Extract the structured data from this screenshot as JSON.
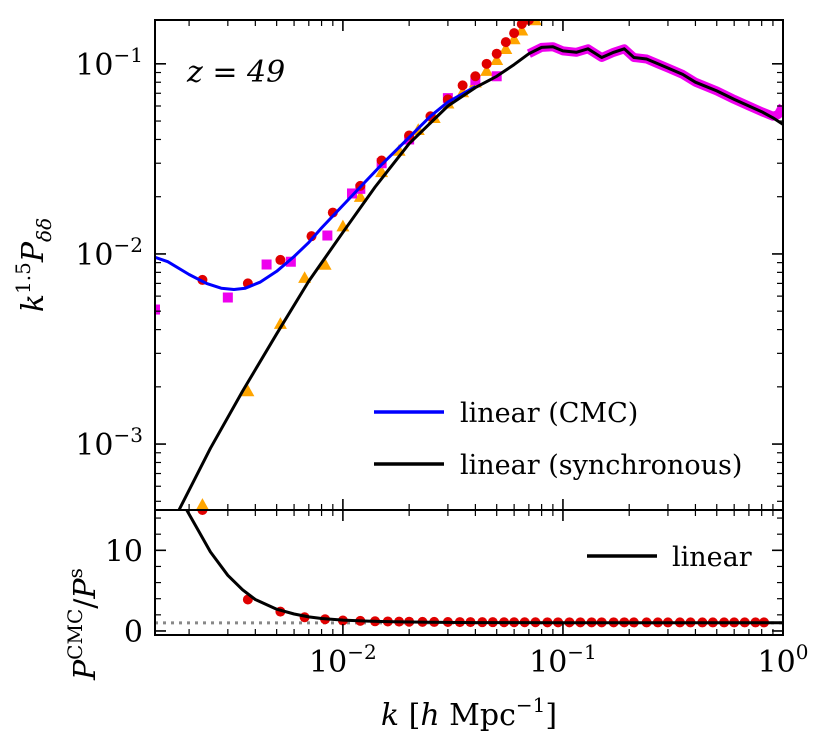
{
  "chart_data": [
    {
      "panel": "top",
      "type": "line",
      "annotation": "z = 49",
      "ylabel": "k^{1.5} P_{δδ}",
      "xlabel": "",
      "xscale": "log",
      "yscale": "log",
      "xlim": [
        0.0014,
        1.0
      ],
      "ylim": [
        0.00045,
        0.17
      ],
      "yticks": [
        {
          "value": 0.1,
          "base": "10",
          "exp": "−1"
        },
        {
          "value": 0.01,
          "base": "10",
          "exp": "−2"
        },
        {
          "value": 0.001,
          "base": "10",
          "exp": "−3"
        }
      ],
      "legend_position": "lower-right",
      "series": [
        {
          "name": "linear (CMC)",
          "style": "line",
          "color": "#0000ff",
          "x": [
            0.0014,
            0.0016,
            0.002,
            0.0024,
            0.0028,
            0.0032,
            0.0036,
            0.0042,
            0.005,
            0.006,
            0.007,
            0.008,
            0.01,
            0.012,
            0.015,
            0.02,
            0.025,
            0.03,
            0.04
          ],
          "y": [
            0.0096,
            0.0091,
            0.0078,
            0.007,
            0.0066,
            0.0065,
            0.0066,
            0.0071,
            0.0081,
            0.0097,
            0.0115,
            0.0137,
            0.018,
            0.0225,
            0.0295,
            0.041,
            0.053,
            0.063,
            0.076
          ]
        },
        {
          "name": "linear (synchronous)",
          "style": "line",
          "color": "#000000",
          "x": [
            0.0018,
            0.0025,
            0.0035,
            0.005,
            0.007,
            0.01,
            0.014,
            0.02,
            0.03,
            0.04,
            0.05,
            0.06,
            0.07,
            0.08,
            0.09,
            0.1,
            0.115,
            0.13,
            0.15,
            0.17,
            0.19,
            0.21,
            0.24,
            0.27,
            0.3,
            0.35,
            0.4,
            0.5,
            0.6,
            0.7,
            0.8,
            0.9,
            1.0
          ],
          "y": [
            0.00045,
            0.00095,
            0.0019,
            0.0038,
            0.0072,
            0.013,
            0.0225,
            0.038,
            0.06,
            0.075,
            0.086,
            0.099,
            0.113,
            0.122,
            0.123,
            0.117,
            0.115,
            0.12,
            0.108,
            0.115,
            0.12,
            0.108,
            0.106,
            0.1,
            0.095,
            0.088,
            0.08,
            0.072,
            0.065,
            0.06,
            0.056,
            0.052,
            0.048
          ]
        },
        {
          "name": "",
          "style": "markers",
          "marker": "circle",
          "color": "#e00000",
          "x": [
            0.0023,
            0.0037,
            0.0052,
            0.0072,
            0.009,
            0.012,
            0.015,
            0.02,
            0.025,
            0.03,
            0.035,
            0.04,
            0.045,
            0.05,
            0.055,
            0.06,
            0.065,
            0.07
          ],
          "y": [
            0.0073,
            0.007,
            0.0093,
            0.0124,
            0.0165,
            0.0228,
            0.031,
            0.042,
            0.053,
            0.065,
            0.077,
            0.086,
            0.1,
            0.113,
            0.13,
            0.145,
            0.162,
            0.17
          ]
        },
        {
          "name": "",
          "style": "markers",
          "marker": "square",
          "color": "#ee00ee",
          "x": [
            0.0014,
            0.003,
            0.0045,
            0.0058,
            0.0085,
            0.011,
            0.012,
            0.015,
            0.02,
            0.03,
            0.04,
            0.05
          ],
          "y": [
            0.0051,
            0.0059,
            0.0088,
            0.0091,
            0.0125,
            0.0208,
            0.022,
            0.03,
            0.04,
            0.066,
            0.082,
            0.086
          ]
        },
        {
          "name": "",
          "style": "markers-dense",
          "marker": "square",
          "color": "#ee00ee",
          "x": [
            0.07,
            0.08,
            0.09,
            0.1,
            0.115,
            0.13,
            0.15,
            0.17,
            0.19,
            0.21,
            0.24,
            0.27,
            0.3,
            0.35,
            0.4,
            0.5,
            0.6,
            0.7,
            0.8,
            0.9,
            0.95,
            1.0
          ],
          "y": [
            0.113,
            0.122,
            0.123,
            0.117,
            0.115,
            0.12,
            0.108,
            0.115,
            0.12,
            0.108,
            0.106,
            0.1,
            0.095,
            0.088,
            0.08,
            0.072,
            0.065,
            0.06,
            0.056,
            0.053,
            0.054,
            0.06
          ]
        },
        {
          "name": "",
          "style": "markers",
          "marker": "triangle",
          "color": "#ffa500",
          "x": [
            0.0023,
            0.0037,
            0.0052,
            0.0067,
            0.0083,
            0.01,
            0.012,
            0.015,
            0.018,
            0.022,
            0.026,
            0.03,
            0.035,
            0.04,
            0.045,
            0.05,
            0.055,
            0.06,
            0.065,
            0.075
          ],
          "y": [
            0.00048,
            0.0019,
            0.0043,
            0.0075,
            0.0088,
            0.014,
            0.02,
            0.027,
            0.035,
            0.045,
            0.052,
            0.062,
            0.071,
            0.08,
            0.092,
            0.105,
            0.12,
            0.135,
            0.15,
            0.17
          ]
        }
      ]
    },
    {
      "panel": "bottom",
      "type": "line",
      "ylabel": "P^{CMC}/P^{s}",
      "xlabel": "k [h Mpc^{−1}]",
      "xscale": "log",
      "yscale": "linear",
      "xlim": [
        0.0014,
        1.0
      ],
      "ylim": [
        -0.5,
        15
      ],
      "yticks": [
        {
          "value": 0,
          "label": "0"
        },
        {
          "value": 10,
          "label": "10"
        }
      ],
      "xticks": [
        {
          "value": 0.01,
          "base": "10",
          "exp": "−2"
        },
        {
          "value": 0.1,
          "base": "10",
          "exp": "−1"
        },
        {
          "value": 1.0,
          "base": "10",
          "exp": "0"
        }
      ],
      "legend_position": "top-right",
      "reference_line": {
        "y": 1,
        "style": "dotted",
        "color": "#888888"
      },
      "series": [
        {
          "name": "linear",
          "style": "line",
          "color": "#000000",
          "x": [
            0.00195,
            0.0022,
            0.0025,
            0.003,
            0.0035,
            0.004,
            0.005,
            0.006,
            0.007,
            0.008,
            0.01,
            0.013,
            0.017,
            0.025,
            0.04,
            0.1,
            0.3,
            1.0
          ],
          "y": [
            15.0,
            12.5,
            9.8,
            6.9,
            5.1,
            3.9,
            2.7,
            2.1,
            1.75,
            1.55,
            1.35,
            1.22,
            1.14,
            1.08,
            1.04,
            1.02,
            1.01,
            1.01
          ]
        },
        {
          "name": "",
          "style": "markers",
          "marker": "circle",
          "color": "#e00000",
          "x": [
            0.0023,
            0.0037,
            0.0052,
            0.0067,
            0.0083,
            0.01,
            0.012,
            0.014,
            0.016,
            0.018,
            0.02,
            0.023,
            0.026,
            0.03,
            0.034,
            0.038,
            0.043,
            0.048,
            0.054,
            0.06,
            0.067,
            0.075,
            0.085,
            0.095,
            0.107,
            0.12,
            0.135,
            0.15,
            0.17,
            0.19,
            0.21,
            0.24,
            0.27,
            0.3,
            0.34,
            0.38,
            0.43,
            0.48,
            0.54,
            0.6,
            0.67,
            0.75,
            0.82
          ],
          "y": [
            15.0,
            3.9,
            2.4,
            1.7,
            1.45,
            1.3,
            1.25,
            1.2,
            1.18,
            1.16,
            1.15,
            1.13,
            1.12,
            1.11,
            1.1,
            1.1,
            1.09,
            1.09,
            1.08,
            1.08,
            1.08,
            1.08,
            1.07,
            1.07,
            1.07,
            1.07,
            1.07,
            1.07,
            1.07,
            1.07,
            1.06,
            1.06,
            1.06,
            1.06,
            1.06,
            1.06,
            1.06,
            1.06,
            1.06,
            1.06,
            1.06,
            1.06,
            1.06
          ]
        }
      ]
    }
  ]
}
